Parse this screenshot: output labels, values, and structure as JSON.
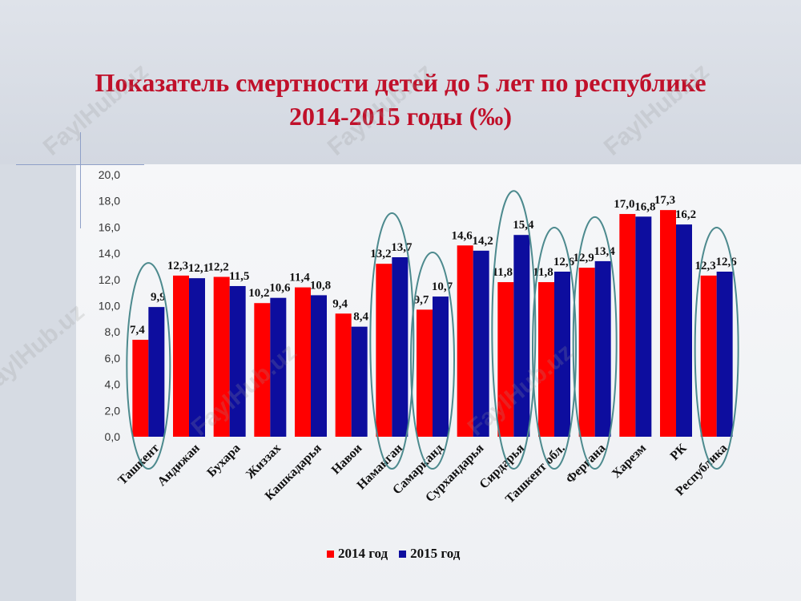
{
  "slide": {
    "title_line1": "Показатель смертности детей до 5 лет по республике",
    "title_line2": "2014-2015 годы (‰)",
    "watermark_text": "FaylHub.uz"
  },
  "colors": {
    "series_2014": "#ff0000",
    "series_2015": "#0d0d9e",
    "title": "#c0102a",
    "ellipse": "#4d8a8e"
  },
  "chart_data": {
    "type": "bar",
    "title": "Показатель смертности детей до 5 лет по республике 2014-2015 годы (‰)",
    "xlabel": "",
    "ylabel": "",
    "ylim": [
      0,
      20
    ],
    "yticks": [
      "0,0",
      "2,0",
      "4,0",
      "6,0",
      "8,0",
      "10,0",
      "12,0",
      "14,0",
      "16,0",
      "18,0",
      "20,0"
    ],
    "grid": false,
    "legend_position": "bottom",
    "categories": [
      "Ташкент",
      "Андижан",
      "Бухара",
      "Жиззах",
      "Кашкадарья",
      "Навои",
      "Наманган",
      "Самарканд",
      "Сурхандарья",
      "Сирдарья",
      "Ташкент обл.",
      "Фергана",
      "Харезм",
      "РК",
      "Республика"
    ],
    "series": [
      {
        "name": "2014 год",
        "values": [
          7.4,
          12.3,
          12.2,
          10.2,
          11.4,
          9.4,
          13.2,
          9.7,
          14.6,
          11.8,
          11.8,
          12.9,
          17.0,
          17.3,
          12.3
        ],
        "labels": [
          "7,4",
          "12,3",
          "12,2",
          "10,2",
          "11,4",
          "9,4",
          "13,2",
          "9,7",
          "14,6",
          "11,8",
          "11,8",
          "12,9",
          "17,0",
          "17,3",
          "12,3"
        ]
      },
      {
        "name": "2015 год",
        "values": [
          9.9,
          12.1,
          11.5,
          10.6,
          10.8,
          8.4,
          13.7,
          10.7,
          14.2,
          15.4,
          12.6,
          13.4,
          16.8,
          16.2,
          12.6
        ],
        "labels": [
          "9,9",
          "12,1",
          "11,5",
          "10,6",
          "10,8",
          "8,4",
          "13,7",
          "10,7",
          "14,2",
          "15,4",
          "12,6",
          "13,4",
          "16,8",
          "16,2",
          "12,6"
        ]
      }
    ],
    "highlighted_categories": [
      "Ташкент",
      "Наманган",
      "Самарканд",
      "Сирдарья",
      "Ташкент обл.",
      "Фергана",
      "Республика"
    ]
  }
}
